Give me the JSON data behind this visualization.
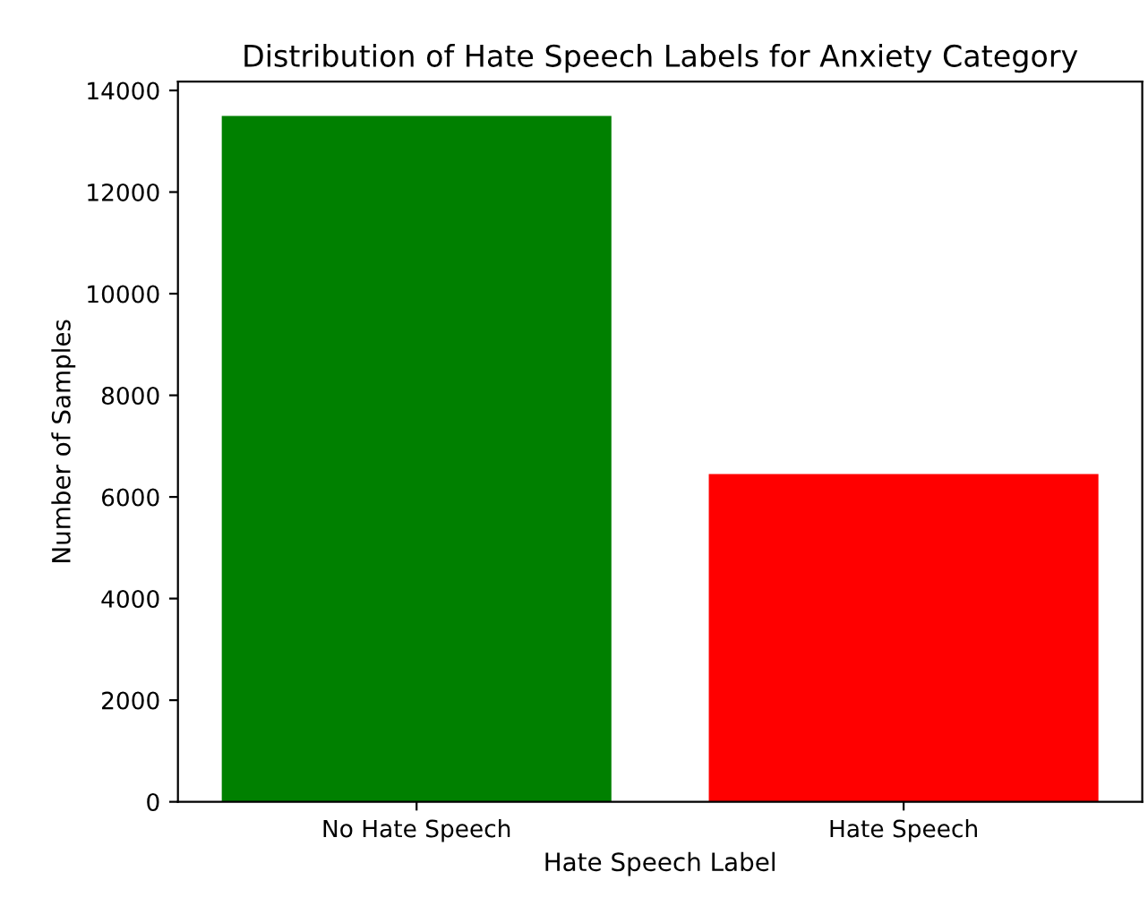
{
  "chart_data": {
    "type": "bar",
    "title": "Distribution of Hate Speech Labels for Anxiety Category",
    "xlabel": "Hate Speech Label",
    "ylabel": "Number of Samples",
    "categories": [
      "No Hate Speech",
      "Hate Speech"
    ],
    "values": [
      13500,
      6450
    ],
    "colors": [
      "#008000",
      "#ff0000"
    ],
    "ylim": [
      0,
      14175
    ],
    "yticks": [
      0,
      2000,
      4000,
      6000,
      8000,
      10000,
      12000,
      14000
    ],
    "grid": false
  }
}
